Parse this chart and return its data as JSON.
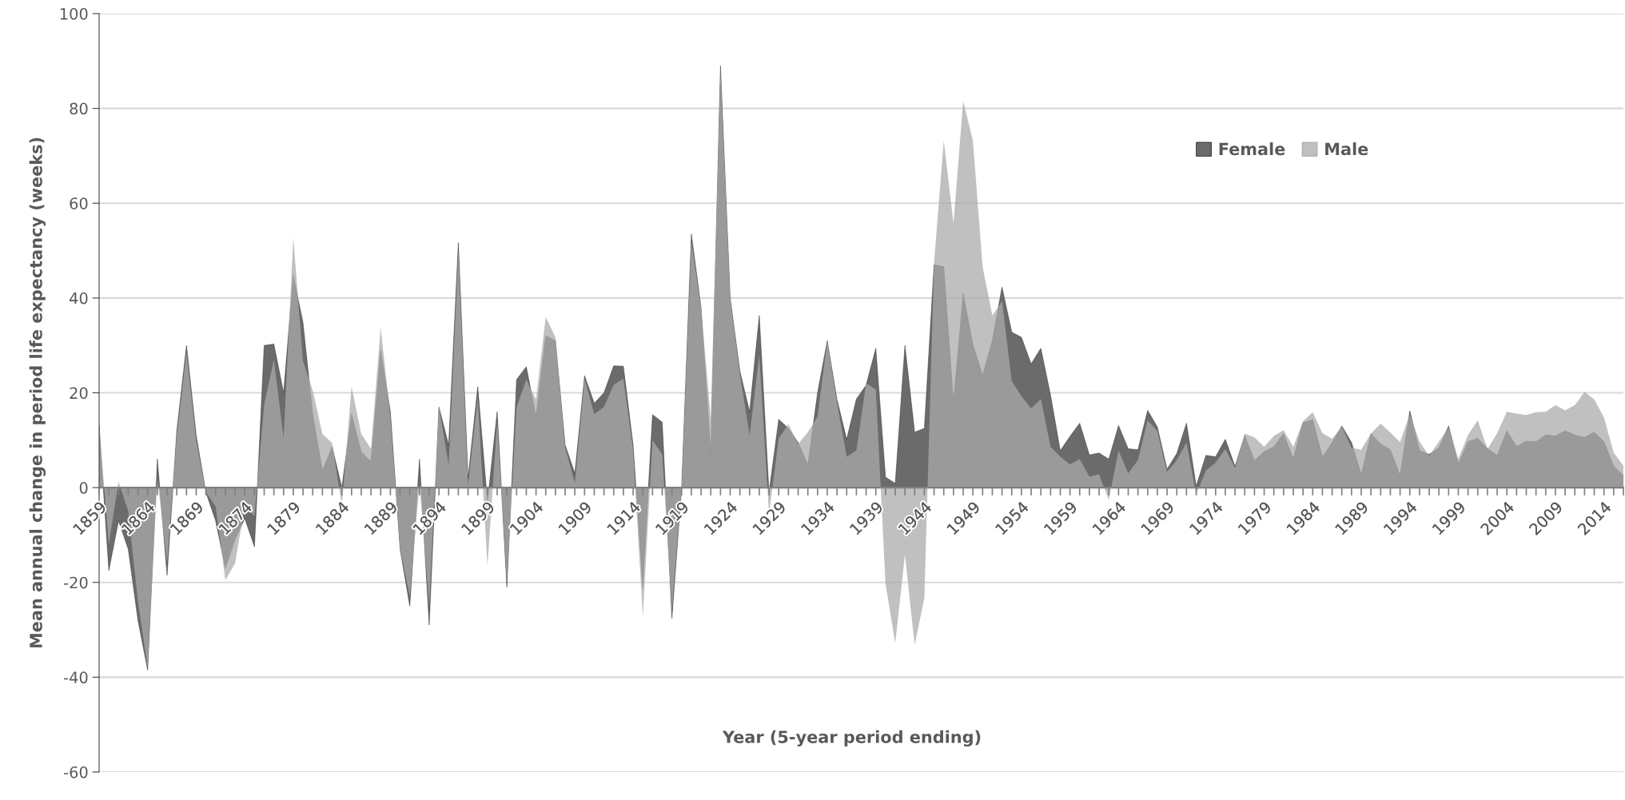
{
  "chart_data": {
    "type": "area",
    "ylabel": "Mean annual change in period life expectancy (weeks)",
    "xlabel": "Year (5-year period ending)",
    "categories": [
      "1859",
      null,
      null,
      null,
      null,
      "1864",
      null,
      null,
      null,
      null,
      "1869",
      null,
      null,
      null,
      null,
      "1874",
      null,
      null,
      null,
      null,
      "1879",
      null,
      null,
      null,
      null,
      "1884",
      null,
      null,
      null,
      null,
      "1889",
      null,
      null,
      null,
      null,
      "1894",
      null,
      null,
      null,
      null,
      "1899",
      null,
      null,
      null,
      null,
      "1904",
      null,
      null,
      null,
      null,
      "1909",
      null,
      null,
      null,
      null,
      "1914",
      null,
      null,
      null,
      null,
      "1919",
      null,
      null,
      null,
      null,
      "1924",
      null,
      null,
      null,
      null,
      "1929",
      null,
      null,
      null,
      null,
      "1934",
      null,
      null,
      null,
      null,
      "1939",
      null,
      null,
      null,
      null,
      "1944",
      null,
      null,
      null,
      null,
      "1949",
      null,
      null,
      null,
      null,
      "1954",
      null,
      null,
      null,
      null,
      "1959",
      null,
      null,
      null,
      null,
      "1964",
      null,
      null,
      null,
      null,
      "1969",
      null,
      null,
      null,
      null,
      "1974",
      null,
      null,
      null,
      null,
      "1979",
      null,
      null,
      null,
      null,
      "1984",
      null,
      null,
      null,
      null,
      "1989",
      null,
      null,
      null,
      null,
      "1994",
      null,
      null,
      null,
      null,
      "1999",
      null,
      null,
      null,
      null,
      "2004",
      null,
      null,
      null,
      null,
      "2009",
      null,
      null,
      null,
      null,
      "2014",
      null,
      null
    ],
    "series": [
      {
        "name": "Female",
        "color": "#6b6b6b",
        "values": [
          13,
          -17.5,
          -7,
          -13,
          -28,
          -38.5,
          6,
          -18.5,
          12,
          30,
          11,
          -1,
          -7,
          -17,
          -11,
          -6.5,
          -12.5,
          30,
          30.3,
          20,
          44.8,
          34.8,
          15.5,
          3.6,
          8.6,
          0,
          15.5,
          7.5,
          5.5,
          29,
          16,
          -13,
          -25,
          6,
          -29,
          17,
          9,
          51.7,
          2,
          21.3,
          -3,
          16,
          -21,
          22.8,
          25.5,
          15,
          32,
          31,
          9,
          3,
          23.6,
          17.8,
          20,
          25.7,
          25.6,
          9,
          -21,
          15.4,
          13.8,
          -27.6,
          0,
          53.5,
          38,
          7.3,
          89,
          40,
          24.6,
          16,
          36.3,
          -1,
          14.4,
          12.5,
          9.5,
          4.9,
          20,
          31,
          18.6,
          10.2,
          18.7,
          21.6,
          29.4,
          2.2,
          0.9,
          30,
          11.7,
          12.5,
          47,
          46.6,
          18.1,
          41,
          30.2,
          23.7,
          31.1,
          42.3,
          32.8,
          31.7,
          26.1,
          29.4,
          19.5,
          7.8,
          10.8,
          13.6,
          6.9,
          7.3,
          6,
          13.1,
          8.2,
          8,
          16.3,
          12.8,
          3.9,
          7.2,
          13.6,
          0.3,
          6.8,
          6.5,
          10.2,
          4.5,
          11,
          5.7,
          7.6,
          8.6,
          11.4,
          6.1,
          13.7,
          14.3,
          6.5,
          9.5,
          13,
          9.5,
          2.8,
          11.4,
          9.2,
          8,
          2.6,
          16.2,
          7.8,
          7,
          8.4,
          13,
          5,
          9.7,
          10.4,
          8.3,
          6.8,
          12,
          8.7,
          9.8,
          9.7,
          11.1,
          10.9,
          12,
          11.1,
          10.6,
          11.7,
          9.7,
          4.5,
          2.6
        ]
      },
      {
        "name": "Male",
        "color": "#aaaaaa",
        "values": [
          13,
          -12,
          1.3,
          -5,
          -24,
          -38,
          2,
          -16,
          11,
          28.5,
          10,
          -1,
          -4,
          -19.5,
          -16,
          -4,
          -6,
          17.5,
          27,
          10.5,
          52.8,
          26.7,
          20.5,
          11.3,
          9.4,
          -3.7,
          21.3,
          11.3,
          8.2,
          33.8,
          15,
          -13,
          -23,
          1,
          -25,
          17,
          4.8,
          50,
          0.5,
          19,
          -16.6,
          14,
          -20,
          17,
          22.8,
          18.6,
          36,
          31.7,
          8.5,
          1,
          23,
          15.5,
          17,
          21.7,
          23,
          8,
          -27.2,
          10,
          7,
          -26,
          0,
          52,
          38,
          14.7,
          88,
          40,
          24,
          11,
          28,
          -5.6,
          10.4,
          13.4,
          9.2,
          11.7,
          15,
          31,
          18,
          6.5,
          7.8,
          22,
          20.7,
          -20.3,
          -32.8,
          -14.2,
          -33.2,
          -23.3,
          47.5,
          73.2,
          55.7,
          81.6,
          73.2,
          46.6,
          36.3,
          39.3,
          22.5,
          19.3,
          16.7,
          18.7,
          8.6,
          6.5,
          4.9,
          6,
          2.3,
          2.8,
          -2.6,
          7.8,
          3,
          5.8,
          14.2,
          11.9,
          3.3,
          5.8,
          9.5,
          -1.4,
          3.6,
          5.3,
          8.1,
          4.2,
          11.4,
          10.6,
          8.6,
          10.9,
          12.1,
          8.6,
          14,
          15.9,
          11.5,
          10.3,
          12.9,
          8.4,
          8,
          11.4,
          13.5,
          11.6,
          9.6,
          15.5,
          9.7,
          6.7,
          9.7,
          12.7,
          6.1,
          11.1,
          14.2,
          8.1,
          11.5,
          16,
          15.6,
          15.3,
          15.9,
          16,
          17.4,
          16.3,
          17.4,
          20.2,
          18.6,
          14.8,
          7.4,
          4.6
        ]
      }
    ],
    "ylim": [
      -60,
      100
    ],
    "yticks": [
      -60,
      -40,
      -20,
      0,
      20,
      40,
      60,
      80,
      100
    ],
    "grid": "y",
    "legend": "top right",
    "marker": "none"
  }
}
